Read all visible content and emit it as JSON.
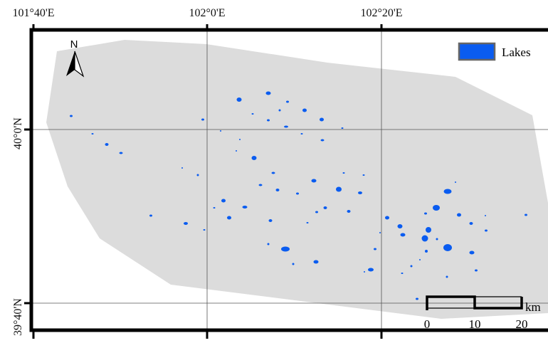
{
  "coordinates": {
    "longitude_labels": [
      "101°40'E",
      "102°0'E",
      "102°20'E"
    ],
    "latitude_labels": [
      "40°0'N",
      "39°40'N"
    ]
  },
  "north_arrow": {
    "label": "N"
  },
  "legend": {
    "items": [
      {
        "label": "Lakes",
        "color": "#0a5cf0"
      }
    ]
  },
  "scale_bar": {
    "ticks": [
      "0",
      "10",
      "20"
    ],
    "unit": "km"
  },
  "colors": {
    "study_area": "#dcdcdc",
    "lakes": "#0a5cf0",
    "frame": "#000000",
    "graticule": "#555555"
  }
}
